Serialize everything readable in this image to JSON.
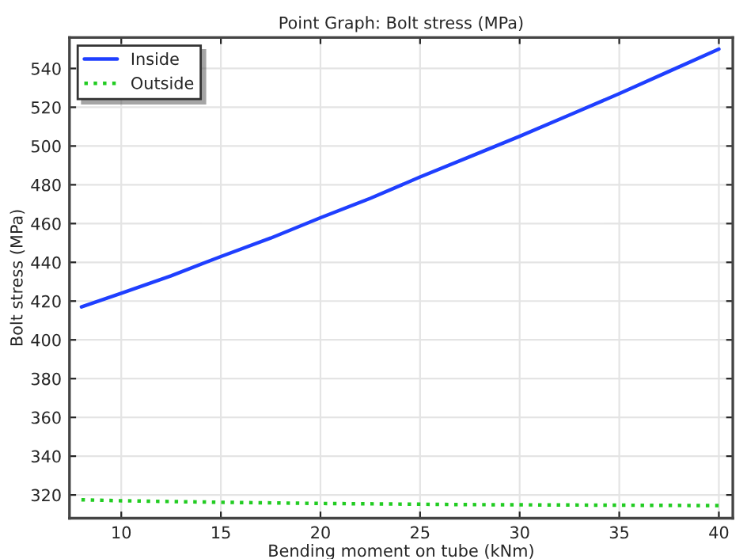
{
  "chart_data": {
    "type": "line",
    "title": "Point Graph: Bolt stress (MPa)",
    "xlabel": "Bending moment on tube (kNm)",
    "ylabel": "Bolt stress (MPa)",
    "x": [
      8,
      10,
      12.5,
      15,
      17.5,
      20,
      22.5,
      25,
      27.5,
      30,
      32.5,
      35,
      37.5,
      40
    ],
    "series": [
      {
        "name": "Inside",
        "color": "#1f3fff",
        "line_style": "solid",
        "values": [
          417,
          424,
          433,
          443,
          452.5,
          463,
          473,
          484,
          494.5,
          505,
          516,
          527,
          538.5,
          550
        ]
      },
      {
        "name": "Outside",
        "color": "#22cc22",
        "line_style": "dotted",
        "values": [
          317.5,
          317,
          316.6,
          316.2,
          315.9,
          315.6,
          315.4,
          315.2,
          315,
          314.9,
          314.8,
          314.7,
          314.6,
          314.5
        ]
      }
    ],
    "xlim": [
      7.4,
      40.7
    ],
    "ylim": [
      308,
      556
    ],
    "xticks": [
      10,
      15,
      20,
      25,
      30,
      35,
      40
    ],
    "yticks": [
      320,
      340,
      360,
      380,
      400,
      420,
      440,
      460,
      480,
      500,
      520,
      540
    ],
    "grid": true,
    "legend": "top left"
  }
}
